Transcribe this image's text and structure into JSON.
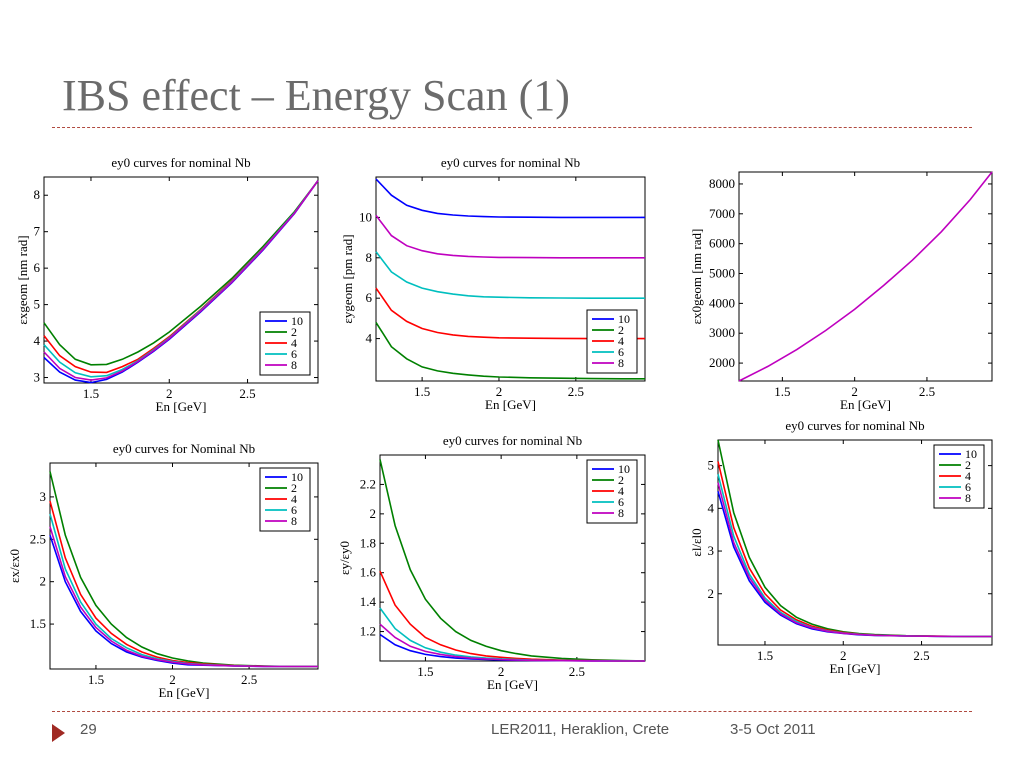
{
  "slide": {
    "title": "IBS effect – Energy Scan (1)",
    "page_number": "29",
    "footer_text": "LER2011, Heraklion, Crete",
    "footer_date": "3-5 Oct 2011"
  },
  "colors": {
    "accent": "#a02a24",
    "title": "#6b6b6b"
  },
  "chart_data": [
    {
      "type": "line",
      "title": "ey0 curves for nominal Nb",
      "xlabel": "En [GeV]",
      "ylabel": "εxgeom [nm rad]",
      "xlim": [
        1.2,
        2.95
      ],
      "ylim": [
        2.85,
        8.5
      ],
      "xticks": [
        1.5,
        2,
        2.5
      ],
      "yticks": [
        3,
        4,
        5,
        6,
        7,
        8
      ],
      "legend_position": "lower-right",
      "grid": false,
      "x": [
        1.2,
        1.3,
        1.4,
        1.5,
        1.6,
        1.7,
        1.8,
        1.9,
        2.0,
        2.2,
        2.4,
        2.6,
        2.8,
        2.95
      ],
      "series": [
        {
          "name": "10",
          "color": "#0000ff",
          "values": [
            3.55,
            3.15,
            2.93,
            2.86,
            2.95,
            3.15,
            3.42,
            3.72,
            4.05,
            4.8,
            5.6,
            6.5,
            7.5,
            8.4
          ]
        },
        {
          "name": "2",
          "color": "#008000",
          "values": [
            4.5,
            3.9,
            3.5,
            3.35,
            3.36,
            3.5,
            3.7,
            3.95,
            4.25,
            4.95,
            5.72,
            6.6,
            7.55,
            8.4
          ]
        },
        {
          "name": "4",
          "color": "#ff0000",
          "values": [
            4.15,
            3.6,
            3.3,
            3.15,
            3.14,
            3.3,
            3.5,
            3.8,
            4.12,
            4.86,
            5.66,
            6.55,
            7.52,
            8.4
          ]
        },
        {
          "name": "6",
          "color": "#00bfbf",
          "values": [
            3.9,
            3.42,
            3.13,
            3.02,
            3.05,
            3.22,
            3.46,
            3.76,
            4.09,
            4.84,
            5.64,
            6.54,
            7.52,
            8.4
          ]
        },
        {
          "name": "8",
          "color": "#bf00bf",
          "values": [
            3.7,
            3.25,
            3.0,
            2.93,
            2.99,
            3.18,
            3.44,
            3.74,
            4.07,
            4.82,
            5.62,
            6.52,
            7.51,
            8.4
          ]
        }
      ]
    },
    {
      "type": "line",
      "title": "ey0 curves for nominal Nb",
      "xlabel": "En [GeV]",
      "ylabel": "εygeom [pm rad]",
      "xlim": [
        1.2,
        2.95
      ],
      "ylim": [
        1.9,
        12.0
      ],
      "xticks": [
        1.5,
        2,
        2.5
      ],
      "yticks": [
        4,
        6,
        8,
        10
      ],
      "legend_position": "lower-right",
      "grid": false,
      "x": [
        1.2,
        1.3,
        1.4,
        1.5,
        1.6,
        1.7,
        1.8,
        1.9,
        2.0,
        2.2,
        2.4,
        2.6,
        2.8,
        2.95
      ],
      "series": [
        {
          "name": "10",
          "color": "#0000ff",
          "values": [
            11.9,
            11.1,
            10.6,
            10.35,
            10.2,
            10.12,
            10.07,
            10.04,
            10.02,
            10.01,
            10.0,
            10.0,
            10.0,
            10.0
          ]
        },
        {
          "name": "2",
          "color": "#008000",
          "values": [
            4.8,
            3.6,
            3.0,
            2.6,
            2.4,
            2.28,
            2.2,
            2.14,
            2.1,
            2.06,
            2.04,
            2.02,
            2.01,
            2.01
          ]
        },
        {
          "name": "4",
          "color": "#ff0000",
          "values": [
            6.5,
            5.4,
            4.85,
            4.5,
            4.3,
            4.18,
            4.11,
            4.07,
            4.04,
            4.02,
            4.01,
            4.0,
            4.0,
            4.0
          ]
        },
        {
          "name": "6",
          "color": "#00bfbf",
          "values": [
            8.3,
            7.3,
            6.8,
            6.5,
            6.32,
            6.2,
            6.12,
            6.07,
            6.05,
            6.02,
            6.01,
            6.0,
            6.0,
            6.0
          ]
        },
        {
          "name": "8",
          "color": "#bf00bf",
          "values": [
            10.1,
            9.1,
            8.6,
            8.35,
            8.2,
            8.12,
            8.07,
            8.04,
            8.02,
            8.01,
            8.0,
            8.0,
            8.0,
            8.0
          ]
        }
      ]
    },
    {
      "type": "line",
      "title": "",
      "xlabel": "En [GeV]",
      "ylabel": "εx0geom [nm rad]",
      "xlim": [
        1.2,
        2.95
      ],
      "ylim": [
        1400,
        8400
      ],
      "xticks": [
        1.5,
        2,
        2.5
      ],
      "yticks": [
        2000,
        3000,
        4000,
        5000,
        6000,
        7000,
        8000
      ],
      "legend_position": "none",
      "grid": false,
      "x": [
        1.2,
        1.4,
        1.6,
        1.8,
        2.0,
        2.2,
        2.4,
        2.6,
        2.8,
        2.95
      ],
      "series": [
        {
          "color": "#bf00bf",
          "values": [
            1400,
            1890,
            2450,
            3090,
            3800,
            4600,
            5450,
            6400,
            7480,
            8400
          ]
        }
      ]
    },
    {
      "type": "line",
      "title": "ey0 curves for Nominal Nb",
      "xlabel": "En [GeV]",
      "ylabel": "εx/εx0",
      "xlim": [
        1.2,
        2.95
      ],
      "ylim": [
        0.97,
        3.4
      ],
      "xticks": [
        1.5,
        2,
        2.5
      ],
      "yticks": [
        1.5,
        2,
        2.5,
        3
      ],
      "legend_position": "top-right",
      "grid": false,
      "x": [
        1.2,
        1.3,
        1.4,
        1.5,
        1.6,
        1.7,
        1.8,
        1.9,
        2.0,
        2.1,
        2.2,
        2.4,
        2.6,
        2.8,
        2.95
      ],
      "series": [
        {
          "name": "10",
          "color": "#0000ff",
          "values": [
            2.55,
            2.0,
            1.65,
            1.42,
            1.27,
            1.17,
            1.11,
            1.07,
            1.04,
            1.02,
            1.015,
            1.005,
            1.0,
            1.0,
            1.0
          ]
        },
        {
          "name": "2",
          "color": "#008000",
          "values": [
            3.3,
            2.55,
            2.05,
            1.72,
            1.5,
            1.34,
            1.23,
            1.15,
            1.1,
            1.065,
            1.04,
            1.015,
            1.005,
            1.0,
            1.0
          ]
        },
        {
          "name": "4",
          "color": "#ff0000",
          "values": [
            2.95,
            2.28,
            1.85,
            1.57,
            1.39,
            1.26,
            1.17,
            1.11,
            1.07,
            1.045,
            1.03,
            1.01,
            1.003,
            1.0,
            1.0
          ]
        },
        {
          "name": "6",
          "color": "#00bfbf",
          "values": [
            2.8,
            2.15,
            1.76,
            1.5,
            1.33,
            1.22,
            1.14,
            1.09,
            1.06,
            1.035,
            1.022,
            1.008,
            1.002,
            1.0,
            1.0
          ]
        },
        {
          "name": "8",
          "color": "#bf00bf",
          "values": [
            2.65,
            2.06,
            1.7,
            1.46,
            1.3,
            1.19,
            1.12,
            1.08,
            1.05,
            1.03,
            1.018,
            1.006,
            1.001,
            1.0,
            1.0
          ]
        }
      ]
    },
    {
      "type": "line",
      "title": "ey0 curves for nominal Nb",
      "xlabel": "En [GeV]",
      "ylabel": "εy/εy0",
      "xlim": [
        1.2,
        2.95
      ],
      "ylim": [
        1.0,
        2.4
      ],
      "xticks": [
        1.5,
        2,
        2.5
      ],
      "yticks": [
        1.2,
        1.4,
        1.6,
        1.8,
        2,
        2.2
      ],
      "legend_position": "top-right",
      "grid": false,
      "x": [
        1.2,
        1.3,
        1.4,
        1.5,
        1.6,
        1.7,
        1.8,
        1.9,
        2.0,
        2.1,
        2.2,
        2.4,
        2.6,
        2.8,
        2.95
      ],
      "series": [
        {
          "name": "10",
          "color": "#0000ff",
          "values": [
            1.18,
            1.11,
            1.07,
            1.045,
            1.03,
            1.02,
            1.014,
            1.01,
            1.007,
            1.005,
            1.004,
            1.002,
            1.001,
            1.0,
            1.0
          ]
        },
        {
          "name": "2",
          "color": "#008000",
          "values": [
            2.37,
            1.92,
            1.62,
            1.42,
            1.29,
            1.2,
            1.14,
            1.1,
            1.07,
            1.05,
            1.035,
            1.018,
            1.008,
            1.003,
            1.0
          ]
        },
        {
          "name": "4",
          "color": "#ff0000",
          "values": [
            1.61,
            1.38,
            1.25,
            1.16,
            1.11,
            1.075,
            1.05,
            1.035,
            1.025,
            1.018,
            1.012,
            1.006,
            1.003,
            1.001,
            1.0
          ]
        },
        {
          "name": "6",
          "color": "#00bfbf",
          "values": [
            1.36,
            1.22,
            1.14,
            1.09,
            1.06,
            1.04,
            1.028,
            1.02,
            1.014,
            1.01,
            1.007,
            1.004,
            1.002,
            1.001,
            1.0
          ]
        },
        {
          "name": "8",
          "color": "#bf00bf",
          "values": [
            1.25,
            1.16,
            1.1,
            1.065,
            1.045,
            1.03,
            1.02,
            1.014,
            1.01,
            1.007,
            1.005,
            1.003,
            1.001,
            1.0,
            1.0
          ]
        }
      ]
    },
    {
      "type": "line",
      "title": "ey0 curves for nominal Nb",
      "xlabel": "En [GeV]",
      "ylabel": "εl/εl0",
      "xlim": [
        1.2,
        2.95
      ],
      "ylim": [
        0.8,
        5.6
      ],
      "xticks": [
        1.5,
        2,
        2.5
      ],
      "yticks": [
        2,
        3,
        4,
        5
      ],
      "legend_position": "top-right",
      "grid": false,
      "x": [
        1.2,
        1.3,
        1.4,
        1.5,
        1.6,
        1.7,
        1.8,
        1.9,
        2.0,
        2.1,
        2.2,
        2.4,
        2.6,
        2.8,
        2.95
      ],
      "series": [
        {
          "name": "10",
          "color": "#0000ff",
          "values": [
            4.4,
            3.1,
            2.3,
            1.8,
            1.5,
            1.3,
            1.18,
            1.11,
            1.07,
            1.04,
            1.025,
            1.01,
            1.003,
            1.0,
            1.0
          ]
        },
        {
          "name": "2",
          "color": "#008000",
          "values": [
            5.6,
            3.9,
            2.85,
            2.15,
            1.72,
            1.45,
            1.29,
            1.18,
            1.11,
            1.07,
            1.045,
            1.018,
            1.006,
            1.002,
            1.0
          ]
        },
        {
          "name": "4",
          "color": "#ff0000",
          "values": [
            5.1,
            3.55,
            2.6,
            2.0,
            1.62,
            1.39,
            1.24,
            1.15,
            1.09,
            1.055,
            1.035,
            1.014,
            1.005,
            1.001,
            1.0
          ]
        },
        {
          "name": "6",
          "color": "#00bfbf",
          "values": [
            4.8,
            3.35,
            2.46,
            1.9,
            1.56,
            1.35,
            1.21,
            1.13,
            1.08,
            1.05,
            1.03,
            1.012,
            1.004,
            1.001,
            1.0
          ]
        },
        {
          "name": "8",
          "color": "#bf00bf",
          "values": [
            4.6,
            3.2,
            2.38,
            1.85,
            1.53,
            1.32,
            1.2,
            1.12,
            1.075,
            1.045,
            1.028,
            1.011,
            1.003,
            1.0,
            1.0
          ]
        }
      ]
    }
  ]
}
